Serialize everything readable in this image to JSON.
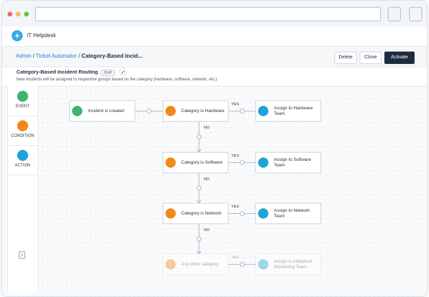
{
  "app": {
    "name": "IT Helpdesk"
  },
  "breadcrumb": [
    "Admin",
    "Ticket Automator",
    "Category-Based Incid..."
  ],
  "buttons": [
    "Delete",
    "Clone",
    "Activate"
  ],
  "workflow": {
    "title": "Category-Based Incident Routing",
    "status": "Draft",
    "description": "New incidents will be assigned to respective groups based on the category (hardware, software, network, etc.)"
  },
  "palette": [
    "EVENT",
    "CONDITION",
    "ACTION"
  ],
  "flow": {
    "trigger": "Incident is created",
    "rows": [
      {
        "condition": "Category is Hardware",
        "yes": "YES",
        "action": "Assign to Hardware Team",
        "no": "NO"
      },
      {
        "condition": "Category is Software",
        "yes": "YES",
        "action": "Assign to Software Team",
        "no": "NO"
      },
      {
        "condition": "Category is Network",
        "yes": "YES",
        "action": "Assign to Network Team",
        "no": "NO"
      },
      {
        "condition": "Any other category",
        "yes": "YES",
        "action": "Assign to Helpdesk Monitoring Team"
      }
    ]
  }
}
